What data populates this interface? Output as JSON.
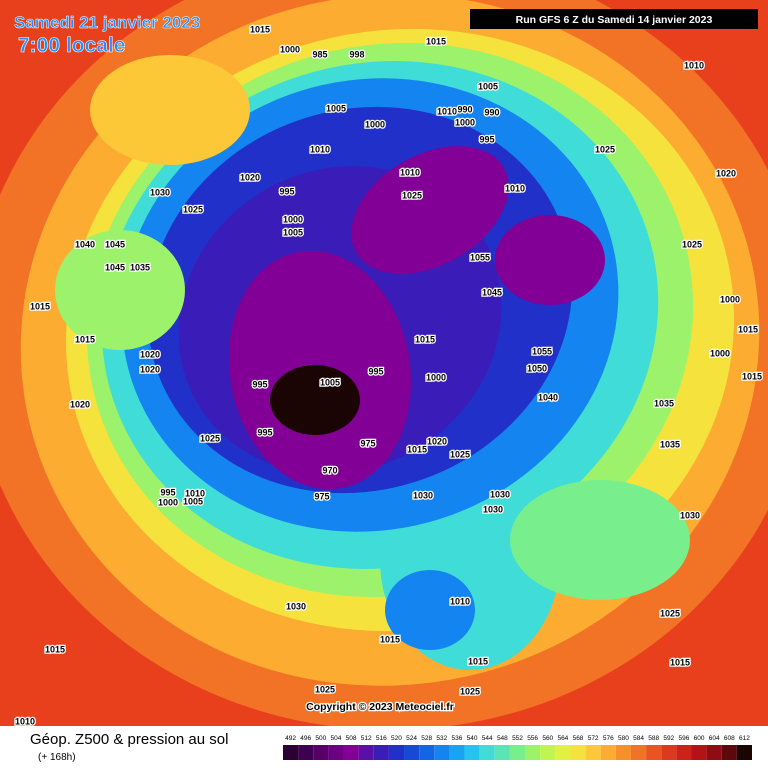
{
  "header": {
    "date": "Samedi 21 janvier 2023",
    "time": "7:00 locale",
    "run": "Run GFS 6 Z du Samedi 14 janvier 2023"
  },
  "footer": {
    "title": "Géop. Z500 & pression au sol",
    "lead": "(+ 168h)",
    "copyright": "Copyright © 2023 Meteociel.fr"
  },
  "legend": {
    "values": [
      492,
      496,
      500,
      504,
      508,
      512,
      516,
      520,
      524,
      528,
      532,
      536,
      540,
      544,
      548,
      552,
      556,
      560,
      564,
      568,
      572,
      576,
      580,
      584,
      588,
      592,
      596,
      600,
      604,
      608,
      612
    ],
    "colors": [
      "#2b0033",
      "#3f0050",
      "#560068",
      "#6d0082",
      "#830096",
      "#5a10a8",
      "#3a1cb8",
      "#2030c8",
      "#1848d8",
      "#1464e6",
      "#1484f0",
      "#18a4f4",
      "#24c4ee",
      "#40dcd8",
      "#5ae6b4",
      "#78ee8c",
      "#9cf26a",
      "#c2f450",
      "#e2f040",
      "#f6e23c",
      "#fcc838",
      "#fcac30",
      "#f8902a",
      "#f27226",
      "#ea5422",
      "#de381e",
      "#cc221a",
      "#b41216",
      "#900c12",
      "#5c080c",
      "#1a0404"
    ]
  },
  "isobar_labels": [
    "1015",
    "1000",
    "985",
    "998",
    "1015",
    "1005",
    "990",
    "990",
    "1000",
    "995",
    "1010",
    "1005",
    "1000",
    "1010",
    "1020",
    "995",
    "1000",
    "1005",
    "1025",
    "1030",
    "1010",
    "1025",
    "1010",
    "1025",
    "1020",
    "1010",
    "1025",
    "1055",
    "1045",
    "1015",
    "1055",
    "1050",
    "1040",
    "1035",
    "1035",
    "1030",
    "1025",
    "1015",
    "1015",
    "995",
    "1005",
    "995",
    "1000",
    "995",
    "975",
    "970",
    "975",
    "1020",
    "1025",
    "1015",
    "1030",
    "1030",
    "1030",
    "1015",
    "1015",
    "1020",
    "1020",
    "1020",
    "1025",
    "995",
    "1000",
    "1010",
    "1005",
    "1045",
    "1040",
    "1045",
    "1035",
    "1030",
    "1010",
    "1015",
    "1015",
    "1025",
    "1025",
    "1015",
    "1010",
    "1000",
    "1000",
    "1015"
  ]
}
